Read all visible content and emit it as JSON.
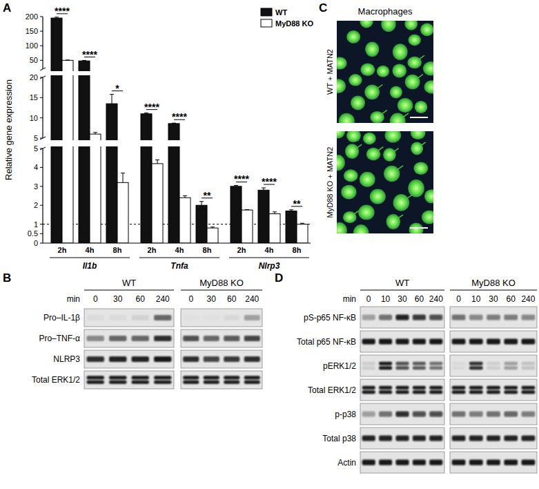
{
  "panel_labels": [
    "A",
    "B",
    "C",
    "D"
  ],
  "chart_data": {
    "type": "bar",
    "y_label": "Relative gene expression",
    "categories": [
      "2h",
      "4h",
      "8h",
      "2h",
      "4h",
      "8h",
      "2h",
      "4h",
      "8h"
    ],
    "category_groups": [
      "Il1b",
      "Tnfa",
      "Nlrp3"
    ],
    "series": [
      {
        "name": "WT",
        "color": "#111111",
        "values": [
          195,
          48,
          13.5,
          11,
          8.6,
          2.0,
          3.0,
          2.8,
          1.7
        ],
        "errors": [
          3,
          1.5,
          2.3,
          0.2,
          0.12,
          0.2,
          0.05,
          0.12,
          0.06
        ]
      },
      {
        "name": "MyD88 KO",
        "color": "#ffffff",
        "values": [
          50,
          6,
          3.2,
          4.2,
          2.4,
          0.8,
          1.75,
          1.55,
          1.0
        ],
        "errors": [
          1,
          0.4,
          0.5,
          0.2,
          0.1,
          0.05,
          0.02,
          0.1,
          0.05
        ]
      }
    ],
    "ylim": [
      0,
      200
    ],
    "y_segments": [
      {
        "ylim": [
          0,
          5
        ],
        "yticks": [
          0,
          0.5,
          1,
          2,
          3,
          4,
          5
        ]
      },
      {
        "ylim": [
          5,
          20
        ],
        "yticks": [
          5,
          10,
          15,
          20
        ]
      },
      {
        "ylim": [
          20,
          200
        ],
        "yticks": [
          50,
          100,
          150,
          200
        ]
      }
    ],
    "reference_line": 1,
    "annotations": [
      "****",
      "****",
      "*",
      "****",
      "****",
      "**",
      "****",
      "****",
      "**"
    ],
    "legend": "top-right"
  },
  "micrographs": {
    "title": "Macrophages",
    "images": [
      {
        "label": "WT + MATN2"
      },
      {
        "label": "MyD88 KO + MATN2"
      }
    ]
  },
  "blots": [
    {
      "genotypes": [
        "WT",
        "MyD88 KO"
      ],
      "time_label": "min",
      "time_points": [
        0,
        30,
        60,
        240
      ],
      "rows": [
        {
          "label": "Pro–IL-1β",
          "bands": 1,
          "values": [
            [
              0.04,
              0.04,
              0.08,
              0.55
            ],
            [
              0.02,
              0.02,
              0.05,
              0.3
            ]
          ]
        },
        {
          "label": "Pro–TNF-α",
          "bands": 1,
          "values": [
            [
              0.4,
              0.55,
              0.55,
              0.85
            ],
            [
              0.7,
              0.55,
              0.65,
              0.75
            ]
          ]
        },
        {
          "label": "NLRP3",
          "bands": 1,
          "values": [
            [
              0.85,
              0.9,
              0.9,
              0.95
            ],
            [
              0.85,
              0.75,
              0.8,
              0.85
            ]
          ]
        },
        {
          "label": "Total ERK1/2",
          "bands": 2,
          "values": [
            [
              0.95,
              0.95,
              0.95,
              0.95
            ],
            [
              0.95,
              0.95,
              0.95,
              0.95
            ]
          ]
        }
      ]
    },
    {
      "genotypes": [
        "WT",
        "MyD88 KO"
      ],
      "time_label": "min",
      "time_points": [
        0,
        10,
        30,
        60,
        240
      ],
      "rows": [
        {
          "label": "pS-p65 NF-κB",
          "bands": 1,
          "values": [
            [
              0.3,
              0.5,
              0.9,
              0.8,
              0.7
            ],
            [
              0.5,
              0.4,
              0.45,
              0.45,
              0.4
            ]
          ]
        },
        {
          "label": "Total p65 NF-κB",
          "bands": 1,
          "values": [
            [
              0.95,
              0.95,
              0.95,
              0.95,
              0.95
            ],
            [
              0.95,
              0.95,
              0.95,
              0.95,
              0.95
            ]
          ]
        },
        {
          "label": "pERK1/2",
          "bands": 2,
          "values": [
            [
              0.1,
              0.95,
              0.7,
              0.6,
              0.5
            ],
            [
              0.05,
              0.85,
              0.1,
              0.3,
              0.15
            ]
          ]
        },
        {
          "label": "Total ERK1/2",
          "bands": 2,
          "values": [
            [
              0.95,
              0.95,
              0.95,
              0.95,
              0.95
            ],
            [
              0.95,
              0.95,
              0.95,
              0.95,
              0.95
            ]
          ]
        },
        {
          "label": "p-p38",
          "bands": 1,
          "values": [
            [
              0.3,
              0.5,
              0.85,
              0.7,
              0.7
            ],
            [
              0.5,
              0.45,
              0.5,
              0.55,
              0.45
            ]
          ]
        },
        {
          "label": "Total p38",
          "bands": 1,
          "values": [
            [
              0.9,
              0.9,
              0.9,
              0.9,
              0.9
            ],
            [
              0.9,
              0.9,
              0.9,
              0.9,
              0.9
            ]
          ]
        },
        {
          "label": "Actin",
          "bands": 1,
          "values": [
            [
              0.95,
              0.95,
              0.95,
              0.95,
              0.95
            ],
            [
              0.95,
              0.95,
              0.95,
              0.95,
              0.95
            ]
          ]
        }
      ]
    }
  ]
}
